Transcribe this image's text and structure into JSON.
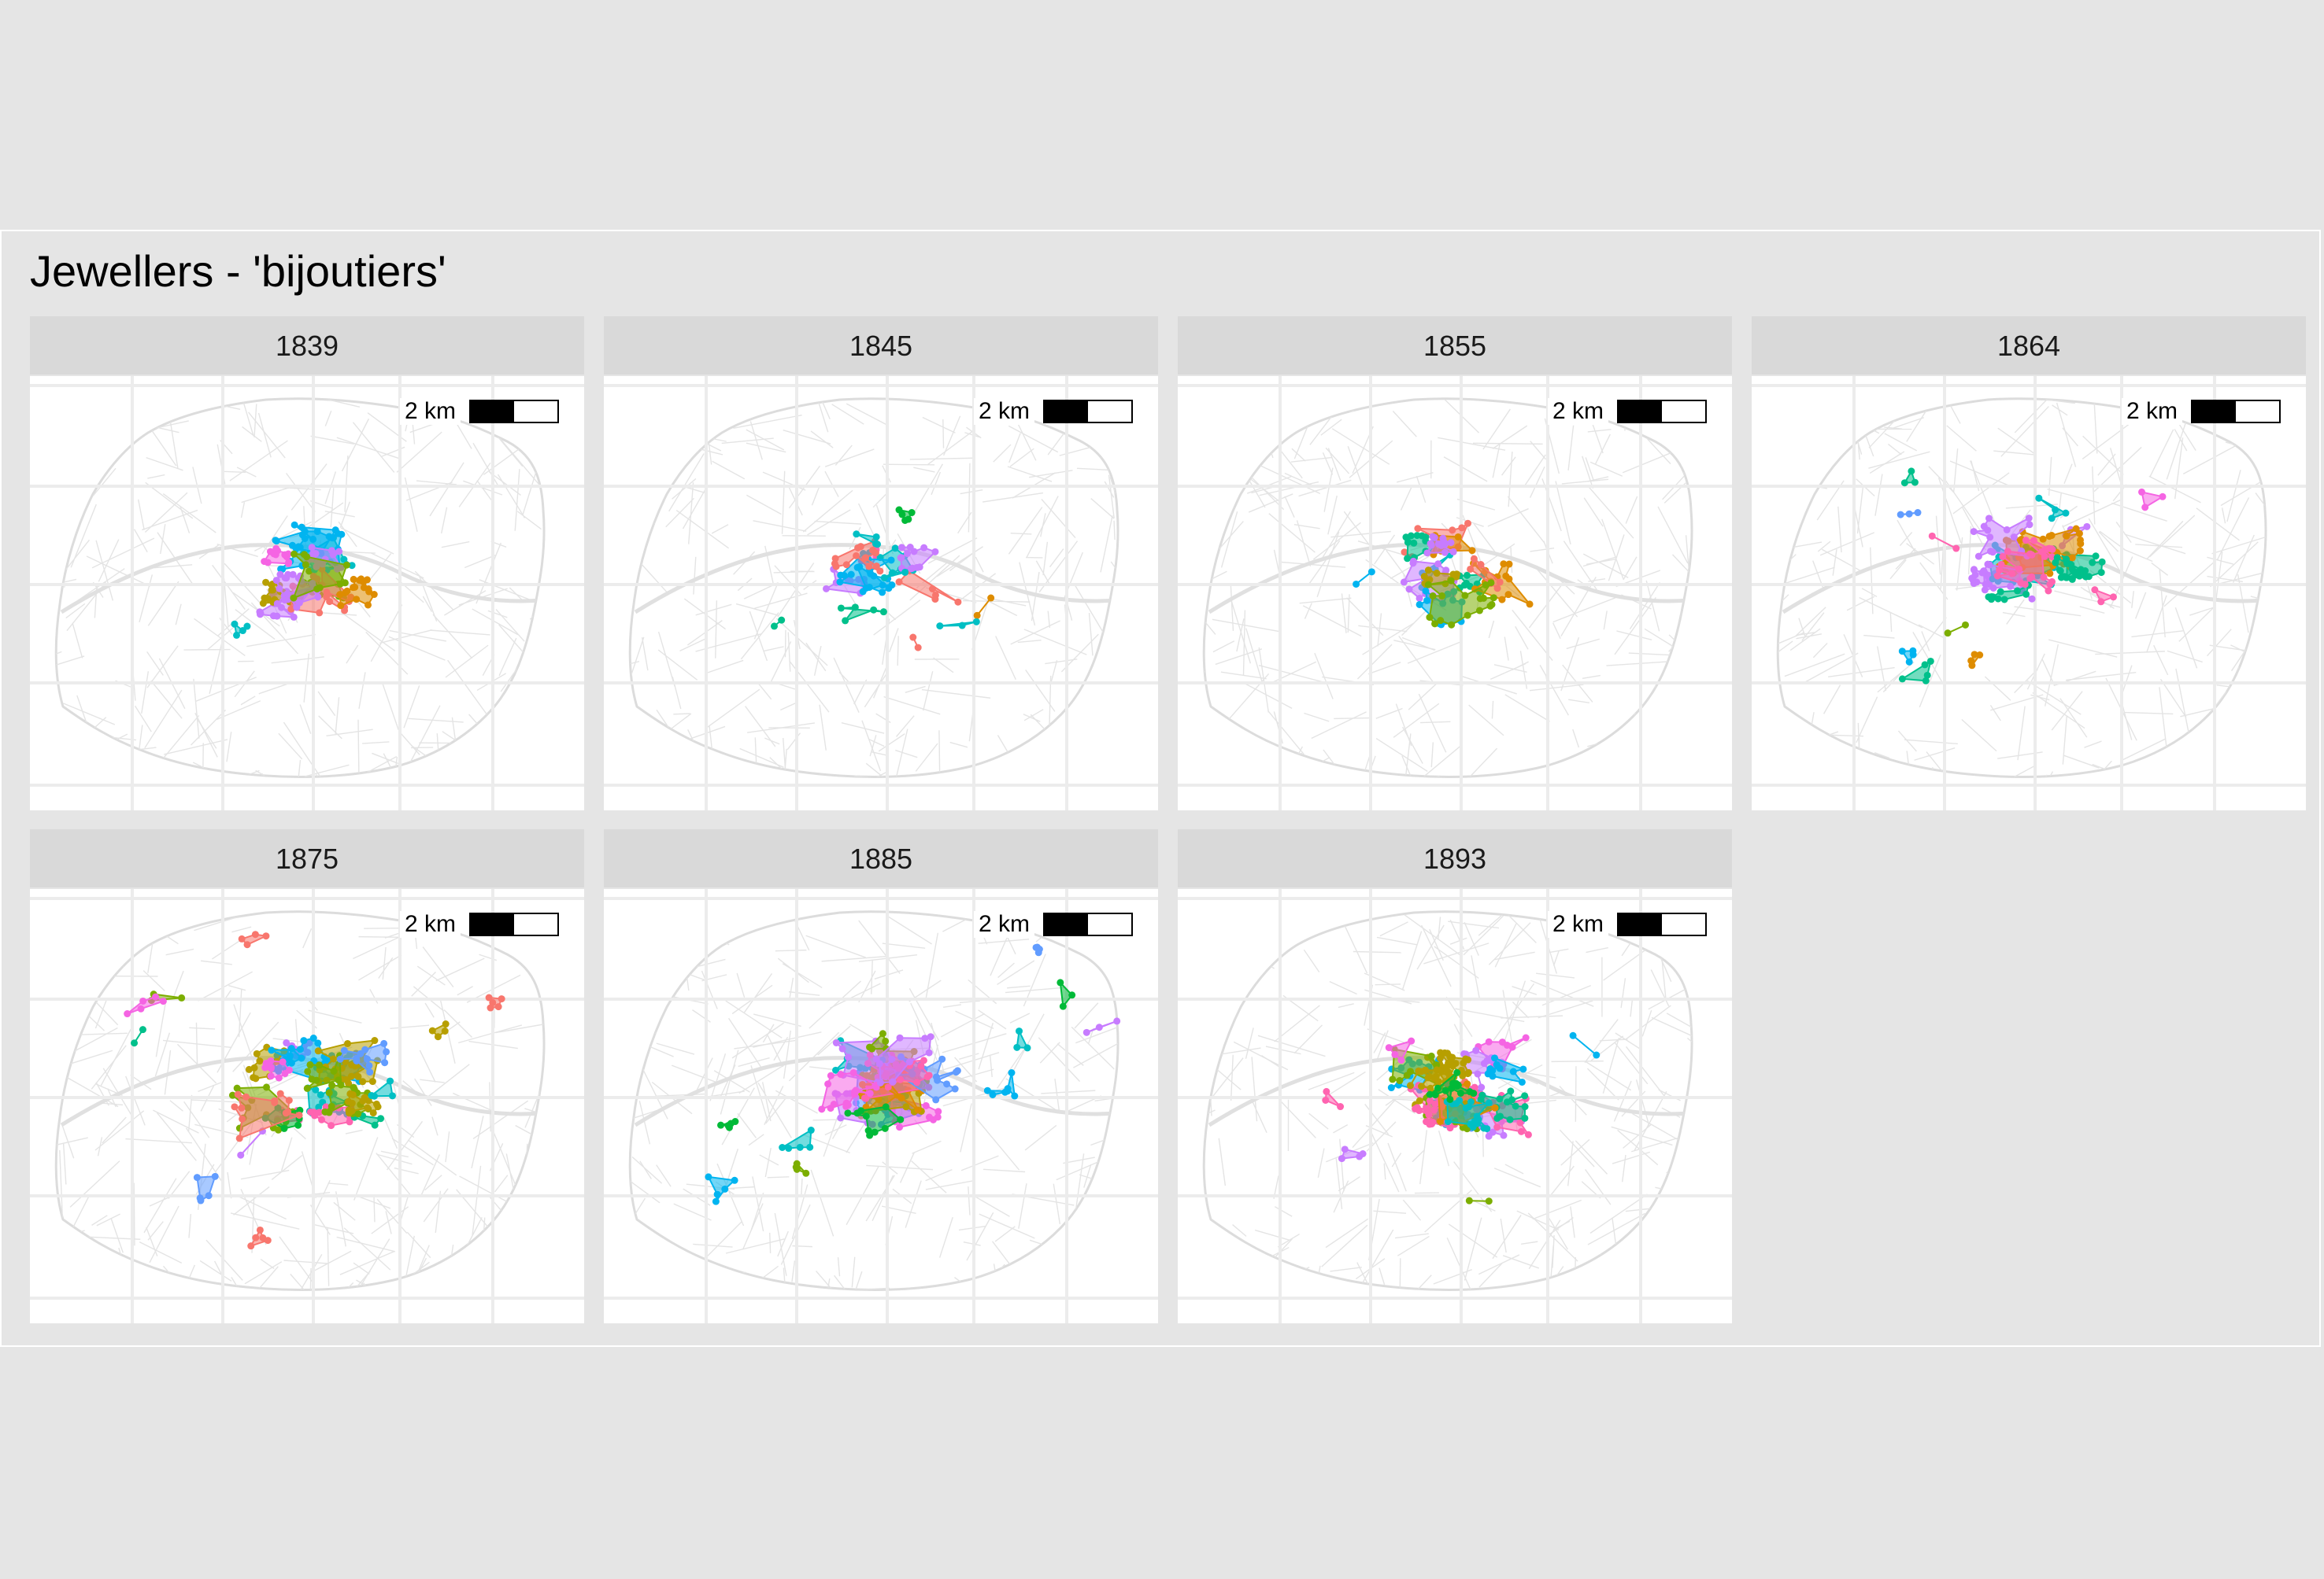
{
  "title": "Jewellers - 'bijoutiers'",
  "scale": {
    "label": "2 km"
  },
  "palette": [
    "#F8766D",
    "#DE8C00",
    "#B79F00",
    "#7CAE00",
    "#00BA38",
    "#00C08B",
    "#00BFC4",
    "#00B4F0",
    "#619CFF",
    "#C77CFF",
    "#F564E3",
    "#FF64B0"
  ],
  "panels": [
    {
      "year": "1839"
    },
    {
      "year": "1845"
    },
    {
      "year": "1855"
    },
    {
      "year": "1864"
    },
    {
      "year": "1875"
    },
    {
      "year": "1885"
    },
    {
      "year": "1893"
    }
  ]
}
